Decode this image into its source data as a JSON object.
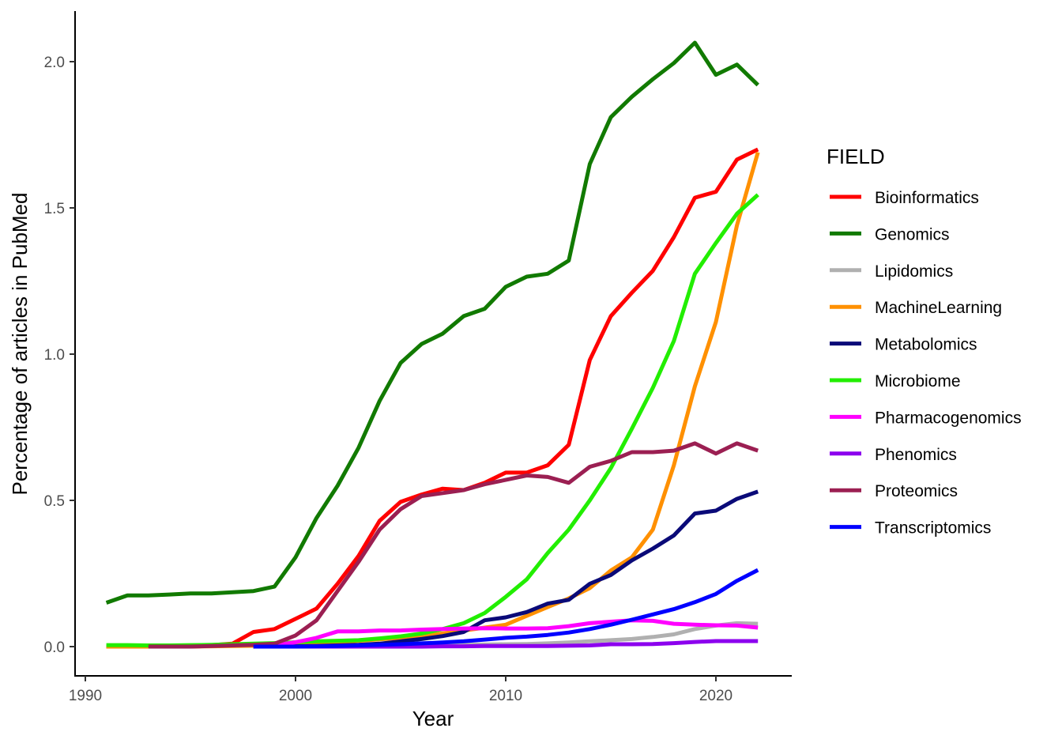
{
  "chart_data": {
    "type": "line",
    "xlabel": "Year",
    "ylabel": "Percentage of articles in PubMed",
    "xlim": [
      1990,
      2022
    ],
    "ylim": [
      0,
      2.0
    ],
    "x_ticks": [
      1990,
      2000,
      2010,
      2020
    ],
    "y_ticks": [
      "0.0",
      "0.5",
      "1.0",
      "1.5",
      "2.0"
    ],
    "grid": false,
    "legend": {
      "title": "FIELD",
      "position": "right"
    },
    "series": [
      {
        "name": "Bioinformatics",
        "color": "#ff0000",
        "x": [
          1991,
          1992,
          1993,
          1994,
          1995,
          1996,
          1997,
          1998,
          1999,
          2000,
          2001,
          2002,
          2003,
          2004,
          2005,
          2006,
          2007,
          2008,
          2009,
          2010,
          2011,
          2012,
          2013,
          2014,
          2015,
          2016,
          2017,
          2018,
          2019,
          2020,
          2021,
          2022
        ],
        "y": [
          0.0,
          0.0,
          0.0,
          0.0,
          0.003,
          0.005,
          0.01,
          0.05,
          0.06,
          0.095,
          0.13,
          0.215,
          0.31,
          0.43,
          0.495,
          0.52,
          0.54,
          0.535,
          0.56,
          0.595,
          0.595,
          0.62,
          0.69,
          0.98,
          1.13,
          1.21,
          1.285,
          1.4,
          1.535,
          1.555,
          1.665,
          1.7
        ]
      },
      {
        "name": "Genomics",
        "color": "#117a00",
        "x": [
          1991,
          1992,
          1993,
          1994,
          1995,
          1996,
          1997,
          1998,
          1999,
          2000,
          2001,
          2002,
          2003,
          2004,
          2005,
          2006,
          2007,
          2008,
          2009,
          2010,
          2011,
          2012,
          2013,
          2014,
          2015,
          2016,
          2017,
          2018,
          2019,
          2020,
          2021,
          2022
        ],
        "y": [
          0.15,
          0.175,
          0.175,
          0.178,
          0.182,
          0.182,
          0.186,
          0.19,
          0.205,
          0.305,
          0.44,
          0.55,
          0.68,
          0.84,
          0.97,
          1.035,
          1.07,
          1.13,
          1.155,
          1.23,
          1.265,
          1.275,
          1.32,
          1.65,
          1.81,
          1.88,
          1.94,
          1.995,
          2.065,
          1.955,
          1.99,
          1.92
        ]
      },
      {
        "name": "Lipidomics",
        "color": "#b0b0b0",
        "x": [
          1998,
          1999,
          2000,
          2001,
          2002,
          2003,
          2004,
          2005,
          2006,
          2007,
          2008,
          2009,
          2010,
          2011,
          2012,
          2013,
          2014,
          2015,
          2016,
          2017,
          2018,
          2019,
          2020,
          2021,
          2022
        ],
        "y": [
          0.0,
          0.0,
          0.0,
          0.0,
          0.001,
          0.002,
          0.002,
          0.003,
          0.004,
          0.005,
          0.006,
          0.007,
          0.008,
          0.009,
          0.011,
          0.014,
          0.018,
          0.022,
          0.026,
          0.033,
          0.042,
          0.06,
          0.072,
          0.08,
          0.078
        ]
      },
      {
        "name": "MachineLearning",
        "color": "#ff9000",
        "x": [
          1991,
          1992,
          1993,
          1994,
          1995,
          1996,
          1997,
          1998,
          1999,
          2000,
          2001,
          2002,
          2003,
          2004,
          2005,
          2006,
          2007,
          2008,
          2009,
          2010,
          2011,
          2012,
          2013,
          2014,
          2015,
          2016,
          2017,
          2018,
          2019,
          2020,
          2021,
          2022
        ],
        "y": [
          0.0,
          0.0,
          0.0,
          0.0,
          0.0,
          0.001,
          0.002,
          0.003,
          0.005,
          0.007,
          0.01,
          0.015,
          0.02,
          0.025,
          0.03,
          0.035,
          0.045,
          0.055,
          0.065,
          0.075,
          0.105,
          0.135,
          0.165,
          0.2,
          0.26,
          0.305,
          0.4,
          0.62,
          0.89,
          1.11,
          1.44,
          1.69
        ]
      },
      {
        "name": "Metabolomics",
        "color": "#0a0a78",
        "x": [
          1998,
          1999,
          2000,
          2001,
          2002,
          2003,
          2004,
          2005,
          2006,
          2007,
          2008,
          2009,
          2010,
          2011,
          2012,
          2013,
          2014,
          2015,
          2016,
          2017,
          2018,
          2019,
          2020,
          2021,
          2022
        ],
        "y": [
          0.0,
          0.0,
          0.001,
          0.002,
          0.004,
          0.006,
          0.01,
          0.018,
          0.026,
          0.036,
          0.05,
          0.09,
          0.1,
          0.118,
          0.147,
          0.16,
          0.215,
          0.245,
          0.295,
          0.335,
          0.38,
          0.455,
          0.465,
          0.505,
          0.53
        ]
      },
      {
        "name": "Microbiome",
        "color": "#22ee00",
        "x": [
          1991,
          1992,
          1993,
          1994,
          1995,
          1996,
          1997,
          1998,
          1999,
          2000,
          2001,
          2002,
          2003,
          2004,
          2005,
          2006,
          2007,
          2008,
          2009,
          2010,
          2011,
          2012,
          2013,
          2014,
          2015,
          2016,
          2017,
          2018,
          2019,
          2020,
          2021,
          2022
        ],
        "y": [
          0.005,
          0.005,
          0.004,
          0.004,
          0.005,
          0.006,
          0.008,
          0.01,
          0.012,
          0.015,
          0.018,
          0.02,
          0.022,
          0.028,
          0.035,
          0.045,
          0.06,
          0.08,
          0.115,
          0.17,
          0.23,
          0.32,
          0.4,
          0.5,
          0.61,
          0.745,
          0.885,
          1.045,
          1.275,
          1.38,
          1.48,
          1.545
        ]
      },
      {
        "name": "Pharmacogenomics",
        "color": "#ff00ff",
        "x": [
          1998,
          1999,
          2000,
          2001,
          2002,
          2003,
          2004,
          2005,
          2006,
          2007,
          2008,
          2009,
          2010,
          2011,
          2012,
          2013,
          2014,
          2015,
          2016,
          2017,
          2018,
          2019,
          2020,
          2021,
          2022
        ],
        "y": [
          0.002,
          0.005,
          0.015,
          0.03,
          0.052,
          0.052,
          0.055,
          0.055,
          0.058,
          0.06,
          0.062,
          0.063,
          0.062,
          0.062,
          0.063,
          0.07,
          0.08,
          0.085,
          0.09,
          0.088,
          0.078,
          0.075,
          0.073,
          0.072,
          0.065
        ]
      },
      {
        "name": "Phenomics",
        "color": "#8c00ee",
        "x": [
          1998,
          1999,
          2000,
          2001,
          2002,
          2003,
          2004,
          2005,
          2006,
          2007,
          2008,
          2009,
          2010,
          2011,
          2012,
          2013,
          2014,
          2015,
          2016,
          2017,
          2018,
          2019,
          2020,
          2021,
          2022
        ],
        "y": [
          0.0,
          0.0,
          0.0,
          0.0,
          0.0,
          0.0,
          0.0,
          0.0,
          0.0,
          0.001,
          0.001,
          0.002,
          0.002,
          0.002,
          0.002,
          0.003,
          0.004,
          0.008,
          0.008,
          0.009,
          0.012,
          0.016,
          0.019,
          0.019,
          0.019
        ]
      },
      {
        "name": "Proteomics",
        "color": "#9b1f52",
        "x": [
          1993,
          1994,
          1995,
          1996,
          1997,
          1998,
          1999,
          2000,
          2001,
          2002,
          2003,
          2004,
          2005,
          2006,
          2007,
          2008,
          2009,
          2010,
          2011,
          2012,
          2013,
          2014,
          2015,
          2016,
          2017,
          2018,
          2019,
          2020,
          2021,
          2022
        ],
        "y": [
          0.0,
          0.0,
          0.0,
          0.002,
          0.004,
          0.006,
          0.01,
          0.038,
          0.09,
          0.19,
          0.29,
          0.4,
          0.47,
          0.515,
          0.525,
          0.535,
          0.555,
          0.57,
          0.585,
          0.58,
          0.56,
          0.615,
          0.635,
          0.665,
          0.665,
          0.67,
          0.695,
          0.66,
          0.695,
          0.67
        ]
      },
      {
        "name": "Transcriptomics",
        "color": "#0000ff",
        "x": [
          1998,
          1999,
          2000,
          2001,
          2002,
          2003,
          2004,
          2005,
          2006,
          2007,
          2008,
          2009,
          2010,
          2011,
          2012,
          2013,
          2014,
          2015,
          2016,
          2017,
          2018,
          2019,
          2020,
          2021,
          2022
        ],
        "y": [
          0.0,
          0.0,
          0.0,
          0.001,
          0.002,
          0.004,
          0.006,
          0.008,
          0.011,
          0.014,
          0.018,
          0.024,
          0.03,
          0.034,
          0.04,
          0.048,
          0.06,
          0.075,
          0.092,
          0.11,
          0.128,
          0.152,
          0.18,
          0.225,
          0.262
        ]
      }
    ]
  }
}
